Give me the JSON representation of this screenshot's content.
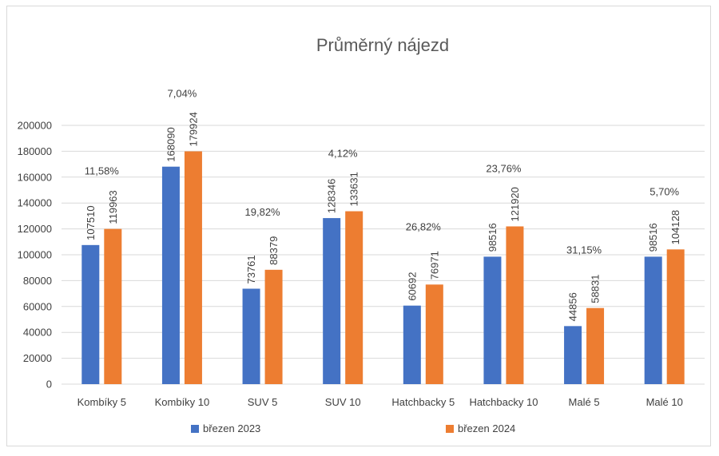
{
  "chart_data": {
    "type": "bar",
    "title": "Průměrný nájezd",
    "categories": [
      "Kombíky 5",
      "Kombíky 10",
      "SUV 5",
      "SUV 10",
      "Hatchbacky 5",
      "Hatchbacky 10",
      "Malé 5",
      "Malé 10"
    ],
    "series": [
      {
        "name": "březen 2023",
        "color": "#4472C4",
        "values": [
          107510,
          168090,
          73761,
          128346,
          60692,
          98516,
          44856,
          98516
        ]
      },
      {
        "name": "březen 2024",
        "color": "#ED7D31",
        "values": [
          119963,
          179924,
          88379,
          133631,
          76971,
          121920,
          58831,
          104128
        ]
      }
    ],
    "change_labels": [
      "11,58%",
      "7,04%",
      "19,82%",
      "4,12%",
      "26,82%",
      "23,76%",
      "31,15%",
      "5,70%"
    ],
    "y_ticks": [
      "0",
      "20000",
      "40000",
      "60000",
      "80000",
      "100000",
      "120000",
      "140000",
      "160000",
      "180000",
      "200000"
    ],
    "ylim": [
      0,
      200000
    ],
    "grid": true,
    "legend_position": "bottom",
    "xlabel": "",
    "ylabel": ""
  }
}
